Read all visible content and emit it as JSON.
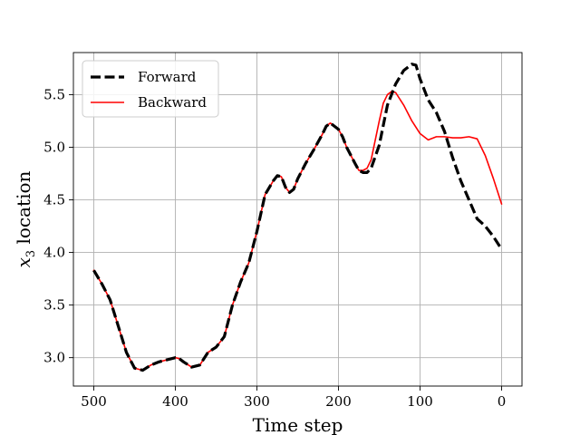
{
  "chart_data": {
    "type": "line",
    "title": "",
    "xlabel": "Time step",
    "ylabel_var": "x",
    "ylabel_sub": "3",
    "ylabel_rest": " location",
    "x_inverted": true,
    "xlim": [
      525,
      -25
    ],
    "ylim": [
      2.73,
      5.9
    ],
    "xticks": [
      500,
      400,
      300,
      200,
      100,
      0
    ],
    "xtick_labels": [
      "500",
      "400",
      "300",
      "200",
      "100",
      "0"
    ],
    "yticks": [
      3.0,
      3.5,
      4.0,
      4.5,
      5.0,
      5.5
    ],
    "ytick_labels": [
      "3.0",
      "3.5",
      "4.0",
      "4.5",
      "5.0",
      "5.5"
    ],
    "grid": true,
    "legend_position": "upper-left",
    "series": [
      {
        "name": "Forward",
        "color": "#000000",
        "style": "dashed",
        "x": [
          500,
          490,
          480,
          470,
          460,
          450,
          440,
          430,
          420,
          410,
          400,
          395,
          390,
          380,
          370,
          360,
          350,
          340,
          330,
          320,
          310,
          300,
          290,
          280,
          275,
          270,
          265,
          260,
          255,
          250,
          240,
          230,
          220,
          215,
          210,
          205,
          200,
          195,
          190,
          180,
          175,
          170,
          165,
          160,
          150,
          140,
          130,
          120,
          110,
          105,
          100,
          90,
          80,
          70,
          60,
          50,
          40,
          30,
          20,
          10,
          0
        ],
        "y": [
          3.83,
          3.7,
          3.55,
          3.3,
          3.05,
          2.9,
          2.88,
          2.93,
          2.96,
          2.98,
          3.0,
          2.99,
          2.96,
          2.91,
          2.93,
          3.05,
          3.1,
          3.2,
          3.5,
          3.72,
          3.9,
          4.2,
          4.55,
          4.68,
          4.73,
          4.72,
          4.62,
          4.57,
          4.6,
          4.7,
          4.85,
          4.98,
          5.12,
          5.2,
          5.23,
          5.2,
          5.17,
          5.1,
          5.0,
          4.85,
          4.78,
          4.76,
          4.76,
          4.8,
          5.02,
          5.4,
          5.6,
          5.73,
          5.79,
          5.78,
          5.65,
          5.45,
          5.33,
          5.15,
          4.9,
          4.68,
          4.5,
          4.32,
          4.25,
          4.15,
          4.03
        ]
      },
      {
        "name": "Backward",
        "color": "#ff0000",
        "style": "solid",
        "x": [
          500,
          490,
          480,
          470,
          460,
          450,
          440,
          430,
          420,
          410,
          400,
          395,
          390,
          380,
          370,
          360,
          350,
          340,
          330,
          320,
          310,
          300,
          290,
          280,
          275,
          270,
          265,
          260,
          255,
          250,
          240,
          230,
          220,
          215,
          210,
          205,
          200,
          195,
          190,
          180,
          175,
          170,
          165,
          160,
          150,
          145,
          140,
          135,
          130,
          120,
          110,
          100,
          90,
          80,
          70,
          60,
          50,
          40,
          30,
          20,
          10,
          0
        ],
        "y": [
          3.83,
          3.7,
          3.55,
          3.3,
          3.05,
          2.9,
          2.88,
          2.93,
          2.96,
          2.98,
          3.0,
          2.99,
          2.96,
          2.91,
          2.93,
          3.05,
          3.1,
          3.2,
          3.5,
          3.72,
          3.9,
          4.2,
          4.55,
          4.68,
          4.73,
          4.72,
          4.62,
          4.57,
          4.6,
          4.7,
          4.85,
          4.98,
          5.12,
          5.2,
          5.23,
          5.2,
          5.17,
          5.1,
          5.0,
          4.85,
          4.78,
          4.78,
          4.8,
          4.88,
          5.25,
          5.42,
          5.5,
          5.53,
          5.52,
          5.4,
          5.25,
          5.13,
          5.07,
          5.1,
          5.1,
          5.09,
          5.09,
          5.1,
          5.08,
          4.92,
          4.7,
          4.46
        ]
      }
    ]
  }
}
